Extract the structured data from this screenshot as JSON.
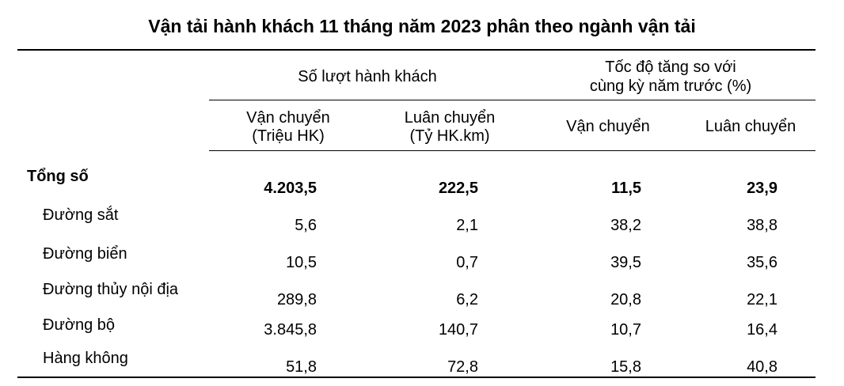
{
  "title": "Vận tải hành khách 11 tháng năm 2023 phân theo ngành vận tải",
  "header": {
    "group1": "Số lượt hành khách",
    "group2_line1": "Tốc độ tăng so với",
    "group2_line2": "cùng kỳ năm trước (%)",
    "col1_line1": "Vận chuyển",
    "col1_line2": "(Triệu HK)",
    "col2_line1": "Luân chuyển",
    "col2_line2": "(Tỷ HK.km)",
    "col3": "Vận chuyển",
    "col4": "Luân chuyển"
  },
  "rows": [
    {
      "label": "Tổng số",
      "v1": "4.203,5",
      "v2": "222,5",
      "v3": "11,5",
      "v4": "23,9"
    },
    {
      "label": "Đường sắt",
      "v1": "5,6",
      "v2": "2,1",
      "v3": "38,2",
      "v4": "38,8"
    },
    {
      "label": "Đường biển",
      "v1": "10,5",
      "v2": "0,7",
      "v3": "39,5",
      "v4": "35,6"
    },
    {
      "label": "Đường thủy nội địa",
      "v1": "289,8",
      "v2": "6,2",
      "v3": "20,8",
      "v4": "22,1"
    },
    {
      "label": "Đường bộ",
      "v1": "3.845,8",
      "v2": "140,7",
      "v3": "10,7",
      "v4": "16,4"
    },
    {
      "label": "Hàng không",
      "v1": "51,8",
      "v2": "72,8",
      "v3": "15,8",
      "v4": "40,8"
    }
  ]
}
